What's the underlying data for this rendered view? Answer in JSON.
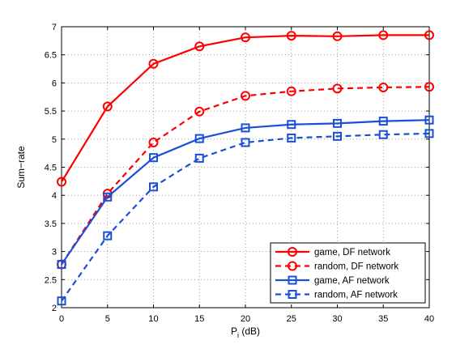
{
  "chart_data": {
    "type": "line",
    "title": "",
    "xlabel": "P",
    "xlabel_sub": "i",
    "xlabel_unit": " (dB)",
    "ylabel": "Sum−rate",
    "xlim": [
      0,
      40
    ],
    "ylim": [
      2,
      7
    ],
    "x_ticks": [
      "0",
      "5",
      "10",
      "15",
      "20",
      "25",
      "30",
      "35",
      "40"
    ],
    "y_ticks": [
      "2",
      "2.5",
      "3",
      "3.5",
      "4",
      "4.5",
      "5",
      "5.5",
      "6",
      "6.5",
      "7"
    ],
    "grid": true,
    "legend_position": "bottom-right",
    "x": [
      0,
      5,
      10,
      15,
      20,
      25,
      30,
      35,
      40
    ],
    "series": [
      {
        "name": "game, DF network",
        "color": "#ff0000",
        "dash": "solid",
        "marker": "circle",
        "values": [
          4.24,
          5.58,
          6.34,
          6.65,
          6.81,
          6.84,
          6.83,
          6.85,
          6.85
        ]
      },
      {
        "name": "random, DF network",
        "color": "#ff0000",
        "dash": "dashed",
        "marker": "circle",
        "values": [
          2.77,
          4.03,
          4.94,
          5.49,
          5.77,
          5.85,
          5.9,
          5.92,
          5.93
        ]
      },
      {
        "name": "game, AF network",
        "color": "#1a4fd8",
        "dash": "solid",
        "marker": "square",
        "values": [
          2.77,
          3.97,
          4.67,
          5.01,
          5.2,
          5.26,
          5.28,
          5.32,
          5.34
        ]
      },
      {
        "name": "random, AF network",
        "color": "#1a4fd8",
        "dash": "dashed",
        "marker": "square",
        "values": [
          2.12,
          3.28,
          4.15,
          4.66,
          4.94,
          5.02,
          5.05,
          5.08,
          5.1
        ]
      }
    ]
  }
}
